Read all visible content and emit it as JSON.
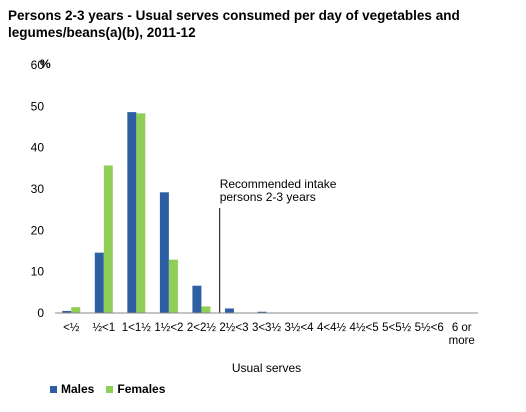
{
  "chart_data": {
    "type": "bar",
    "title": "Persons 2-3 years - Usual serves consumed per day of vegetables and legumes/beans(a)(b), 2011-12",
    "ylabel": "%",
    "xlabel": "Usual serves",
    "ylim": [
      0,
      60
    ],
    "yticks": [
      "0",
      "10",
      "20",
      "30",
      "40",
      "50",
      "60"
    ],
    "categories": [
      {
        "line1": "<½",
        "line2": ""
      },
      {
        "line1": "½<1",
        "line2": ""
      },
      {
        "line1": "1<1½",
        "line2": ""
      },
      {
        "line1": "1½<2",
        "line2": ""
      },
      {
        "line1": "2<2½",
        "line2": ""
      },
      {
        "line1": "2½<3",
        "line2": ""
      },
      {
        "line1": "3<3½",
        "line2": ""
      },
      {
        "line1": "3½<4",
        "line2": ""
      },
      {
        "line1": "4<4½",
        "line2": ""
      },
      {
        "line1": "4½<5",
        "line2": ""
      },
      {
        "line1": "5<5½",
        "line2": ""
      },
      {
        "line1": "5½<6",
        "line2": ""
      },
      {
        "line1": "6 or",
        "line2": "more"
      }
    ],
    "series": [
      {
        "name": "Males",
        "color": "#2e5fa3",
        "values": [
          0.5,
          14.6,
          48.6,
          29.2,
          6.6,
          1.1,
          0.3,
          0,
          0,
          0,
          0,
          0,
          0
        ]
      },
      {
        "name": "Females",
        "color": "#8fce57",
        "values": [
          1.4,
          35.7,
          48.3,
          12.9,
          1.6,
          0,
          0,
          0,
          0,
          0,
          0,
          0,
          0
        ]
      }
    ],
    "annotation": {
      "line1": "Recommended intake",
      "line2": "persons 2-3 years",
      "position_value": 5
    },
    "legend_position": "bottom-left",
    "grid": false
  }
}
